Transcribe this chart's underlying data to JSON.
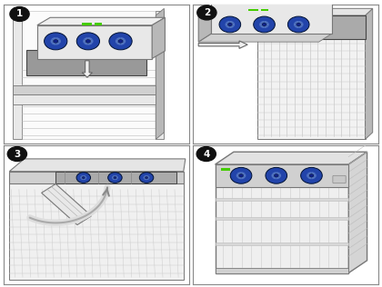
{
  "background_color": "#ffffff",
  "outer_border": "#888888",
  "divider_color": "#888888",
  "step_circle_color": "#111111",
  "step_text_color": "#ffffff",
  "chassis_light": "#e8e8e8",
  "chassis_mid": "#d0d0d0",
  "chassis_dark": "#b8b8b8",
  "chassis_edge": "#777777",
  "chassis_edge_dark": "#444444",
  "fan_color": "#2244aa",
  "fan_dark": "#112288",
  "fan_edge": "#001133",
  "fan_blade": "#6688cc",
  "green1": "#44cc00",
  "green2": "#22aa00",
  "mesh_bg": "#555555",
  "mesh_line": "#888888",
  "arrow_fill": "#f0f0f0",
  "arrow_edge": "#666666",
  "vent_line": "#aaaaaa",
  "figure_width": 4.2,
  "figure_height": 3.16,
  "dpi": 100
}
